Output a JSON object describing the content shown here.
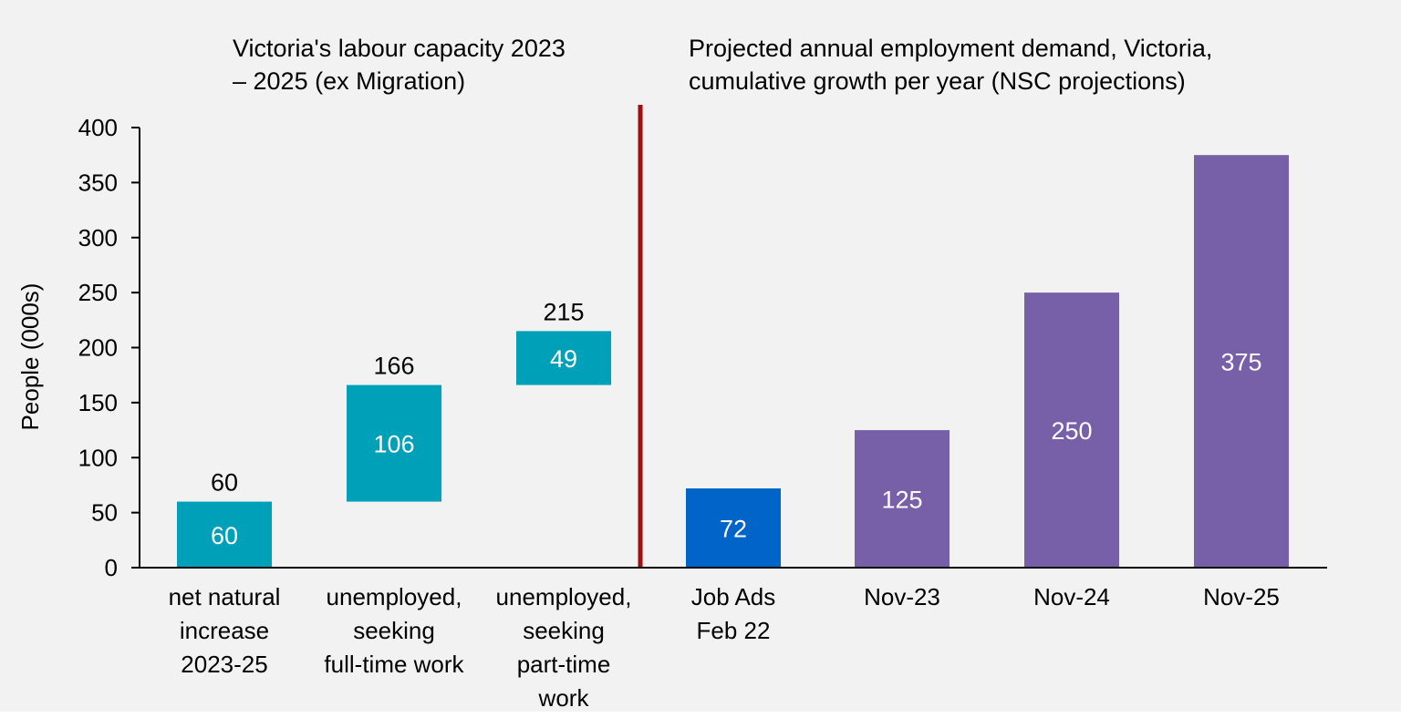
{
  "chart_data": {
    "type": "bar",
    "subtype": "waterfall-and-bar",
    "ylabel": "People (000s)",
    "ylim": [
      0,
      400
    ],
    "yticks": [
      0,
      50,
      100,
      150,
      200,
      250,
      300,
      350,
      400
    ],
    "grid": false,
    "legend": null,
    "panels": [
      {
        "title": "Victoria's labour capacity 2023\n– 2025 (ex Migration)",
        "type": "waterfall",
        "categories": [
          "net natural\nincrease\n2023-25",
          "unemployed,\nseeking\nfull-time work",
          "unemployed,\nseeking\npart-time\nwork"
        ],
        "increments": [
          60,
          106,
          49
        ],
        "bases": [
          0,
          60,
          166
        ],
        "cumulative_totals": [
          60,
          166,
          215
        ],
        "total_labels": [
          "60",
          "166",
          "215"
        ],
        "value_labels": [
          "60",
          "106",
          "49"
        ],
        "color": "#00a0b9"
      },
      {
        "title": "Projected annual employment demand, Victoria,\ncumulative growth per year (NSC projections)",
        "type": "bar",
        "categories": [
          "Job Ads\nFeb 22",
          "Nov-23",
          "Nov-24",
          "Nov-25"
        ],
        "values": [
          72,
          125,
          250,
          375
        ],
        "value_labels": [
          "72",
          "125",
          "250",
          "375"
        ],
        "colors": [
          "#0064c8",
          "#7860a8",
          "#7860a8",
          "#7860a8"
        ]
      }
    ],
    "divider": {
      "between_panels": true,
      "color": "#a00d12"
    }
  },
  "colors": {
    "background": "#f2f2f2",
    "axis": "#000000"
  }
}
